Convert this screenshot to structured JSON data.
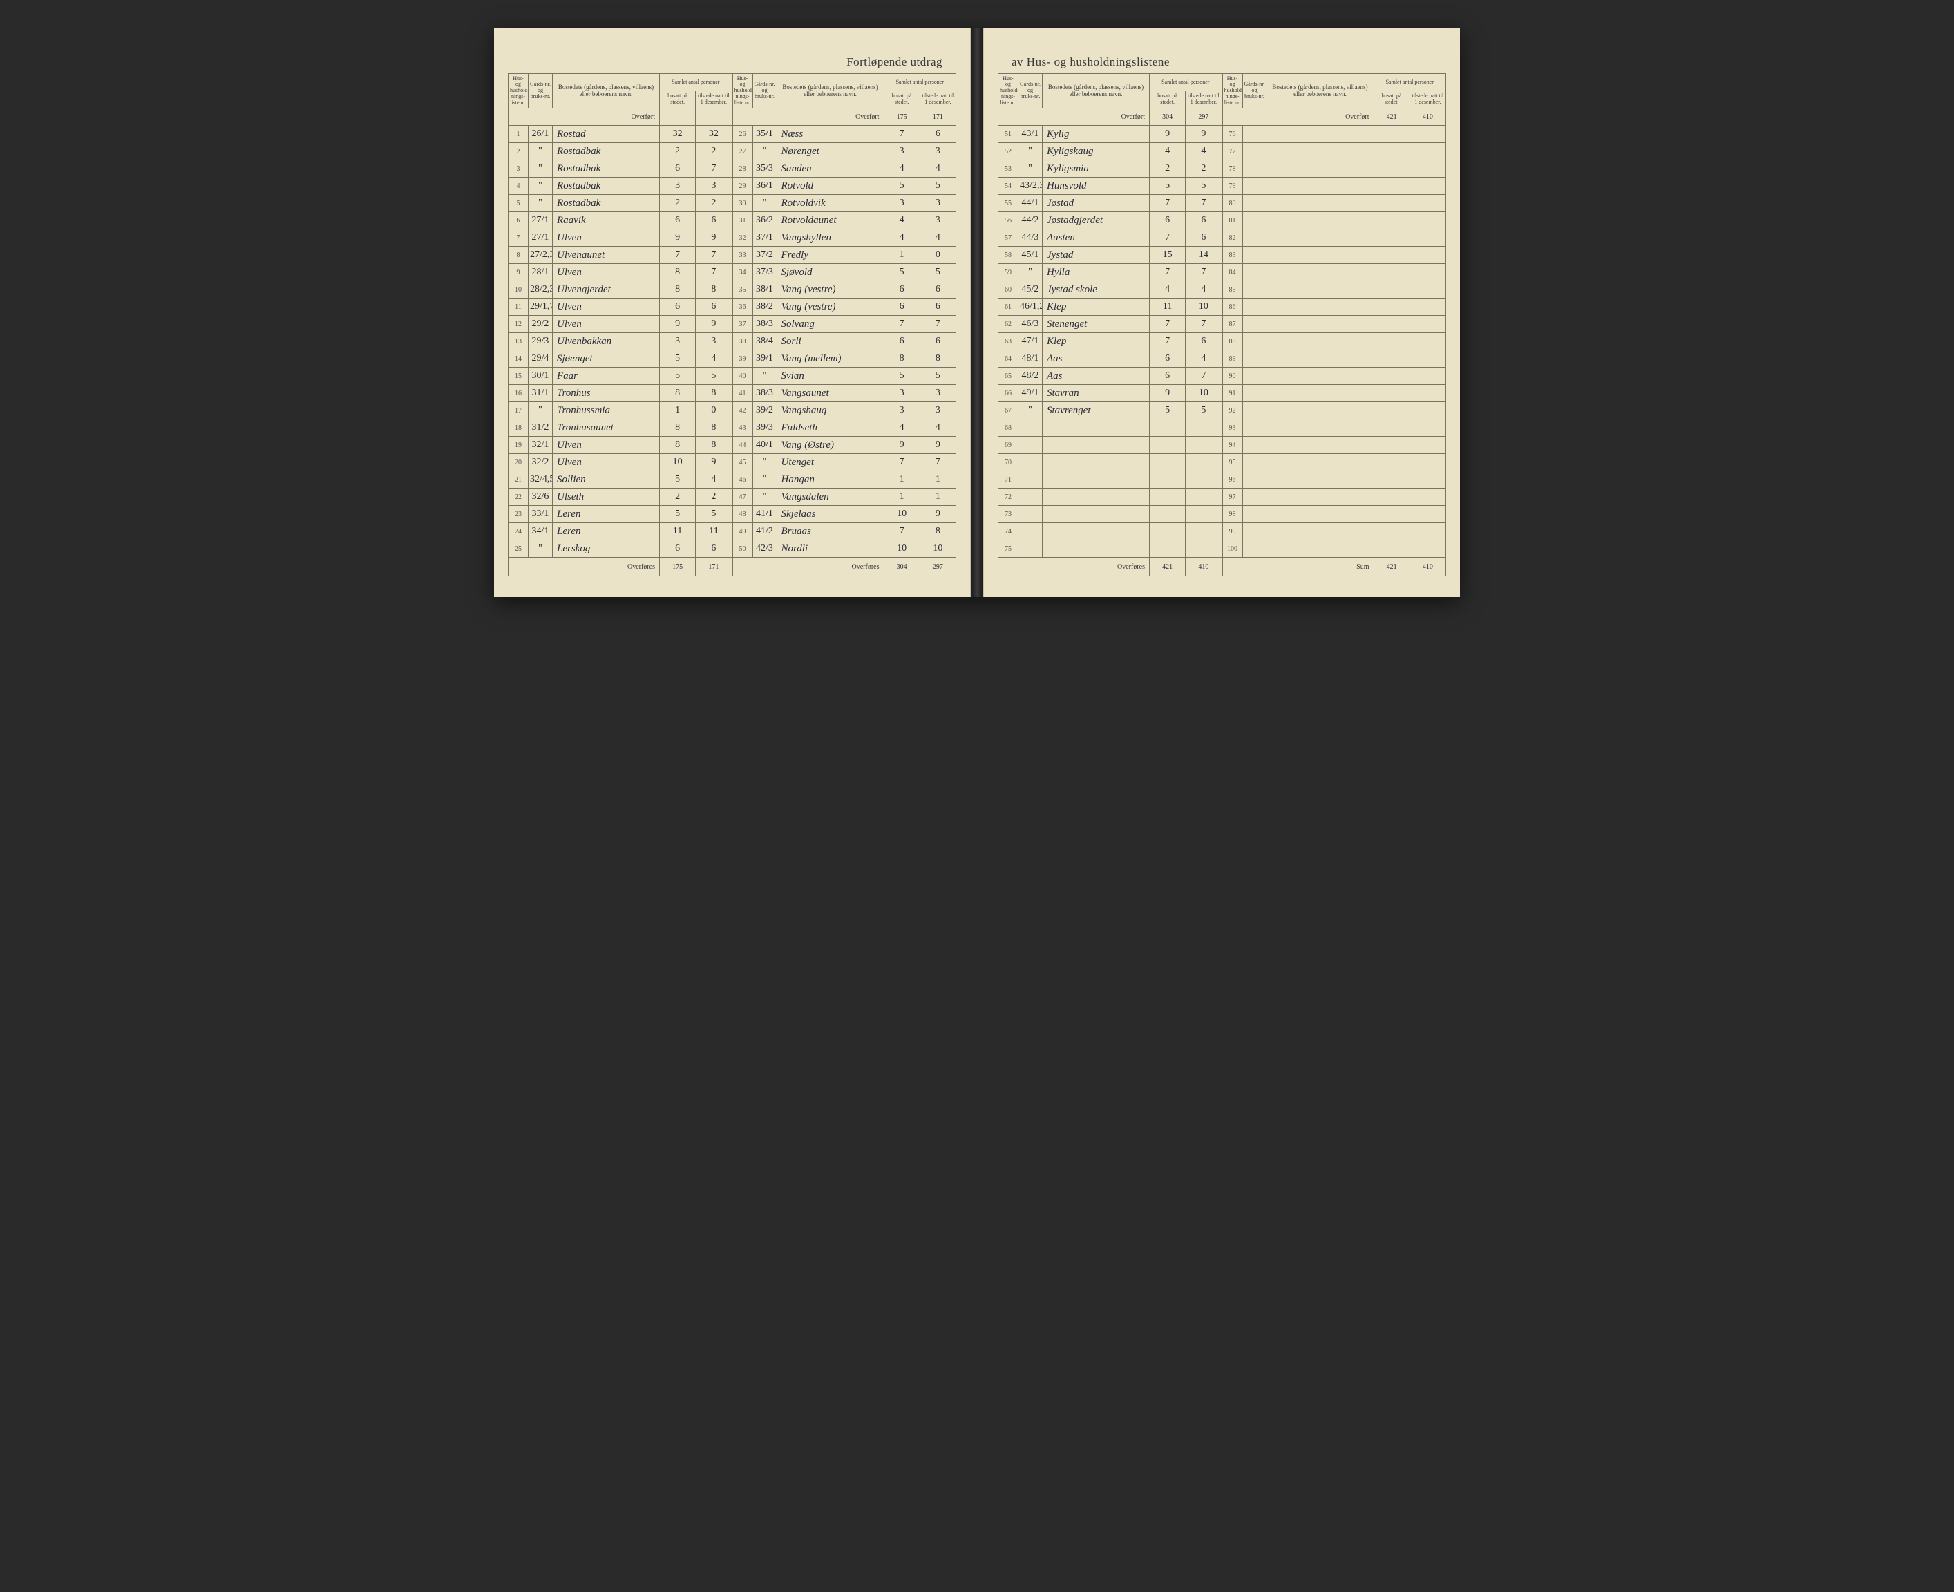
{
  "title_left": "Fortløpende utdrag",
  "title_right": "av Hus- og husholdningslistene",
  "headers": {
    "husnr": "Hus- og hushold-nings-liste nr.",
    "gardsnr": "Gårds-nr. og bruks-nr.",
    "bosted": "Bostedets (gårdens, plassens, villaens) eller beboerens navn.",
    "samlet": "Samlet antal personer",
    "bosatt": "bosatt på stedet.",
    "tilstede": "tilstede natt til 1 desember."
  },
  "overfort_label": "Overført",
  "overfores_label": "Overføres",
  "sum_label": "Sum",
  "blocks": [
    {
      "overfort": [
        "",
        ""
      ],
      "rows": [
        {
          "n": "1",
          "g": "26/1",
          "navn": "Rostad",
          "b": "32",
          "t": "32"
        },
        {
          "n": "2",
          "g": "\"",
          "navn": "Rostadbak",
          "b": "2",
          "t": "2"
        },
        {
          "n": "3",
          "g": "\"",
          "navn": "Rostadbak",
          "b": "6",
          "t": "7"
        },
        {
          "n": "4",
          "g": "\"",
          "navn": "Rostadbak",
          "b": "3",
          "t": "3"
        },
        {
          "n": "5",
          "g": "\"",
          "navn": "Rostadbak",
          "b": "2",
          "t": "2"
        },
        {
          "n": "6",
          "g": "27/1",
          "navn": "Raavik",
          "b": "6",
          "t": "6"
        },
        {
          "n": "7",
          "g": "27/1",
          "navn": "Ulven",
          "b": "9",
          "t": "9"
        },
        {
          "n": "8",
          "g": "27/2,3,4,5",
          "navn": "Ulvenaunet",
          "b": "7",
          "t": "7"
        },
        {
          "n": "9",
          "g": "28/1",
          "navn": "Ulven",
          "b": "8",
          "t": "7"
        },
        {
          "n": "10",
          "g": "28/2,3",
          "navn": "Ulvengjerdet",
          "b": "8",
          "t": "8"
        },
        {
          "n": "11",
          "g": "29/1,7",
          "navn": "Ulven",
          "b": "6",
          "t": "6"
        },
        {
          "n": "12",
          "g": "29/2",
          "navn": "Ulven",
          "b": "9",
          "t": "9"
        },
        {
          "n": "13",
          "g": "29/3",
          "navn": "Ulvenbakkan",
          "b": "3",
          "t": "3"
        },
        {
          "n": "14",
          "g": "29/4",
          "navn": "Sjøenget",
          "b": "5",
          "t": "4"
        },
        {
          "n": "15",
          "g": "30/1",
          "navn": "Faar",
          "b": "5",
          "t": "5"
        },
        {
          "n": "16",
          "g": "31/1",
          "navn": "Tronhus",
          "b": "8",
          "t": "8"
        },
        {
          "n": "17",
          "g": "\"",
          "navn": "Tronhussmia",
          "b": "1",
          "t": "0"
        },
        {
          "n": "18",
          "g": "31/2",
          "navn": "Tronhusaunet",
          "b": "8",
          "t": "8"
        },
        {
          "n": "19",
          "g": "32/1",
          "navn": "Ulven",
          "b": "8",
          "t": "8"
        },
        {
          "n": "20",
          "g": "32/2",
          "navn": "Ulven",
          "b": "10",
          "t": "9"
        },
        {
          "n": "21",
          "g": "32/4,5",
          "navn": "Sollien",
          "b": "5",
          "t": "4"
        },
        {
          "n": "22",
          "g": "32/6",
          "navn": "Ulseth",
          "b": "2",
          "t": "2"
        },
        {
          "n": "23",
          "g": "33/1",
          "navn": "Leren",
          "b": "5",
          "t": "5"
        },
        {
          "n": "24",
          "g": "34/1",
          "navn": "Leren",
          "b": "11",
          "t": "11"
        },
        {
          "n": "25",
          "g": "\"",
          "navn": "Lerskog",
          "b": "6",
          "t": "6"
        }
      ],
      "overfores": [
        "175",
        "171"
      ]
    },
    {
      "overfort": [
        "175",
        "171"
      ],
      "rows": [
        {
          "n": "26",
          "g": "35/1",
          "navn": "Næss",
          "b": "7",
          "t": "6"
        },
        {
          "n": "27",
          "g": "\"",
          "navn": "Nørenget",
          "b": "3",
          "t": "3"
        },
        {
          "n": "28",
          "g": "35/3",
          "navn": "Sanden",
          "b": "4",
          "t": "4"
        },
        {
          "n": "29",
          "g": "36/1",
          "navn": "Rotvold",
          "b": "5",
          "t": "5"
        },
        {
          "n": "30",
          "g": "\"",
          "navn": "Rotvoldvik",
          "b": "3",
          "t": "3"
        },
        {
          "n": "31",
          "g": "36/2",
          "navn": "Rotvoldaunet",
          "b": "4",
          "t": "3"
        },
        {
          "n": "32",
          "g": "37/1",
          "navn": "Vangshyllen",
          "b": "4",
          "t": "4"
        },
        {
          "n": "33",
          "g": "37/2",
          "navn": "Fredly",
          "b": "1",
          "t": "0"
        },
        {
          "n": "34",
          "g": "37/3",
          "navn": "Sjøvold",
          "b": "5",
          "t": "5"
        },
        {
          "n": "35",
          "g": "38/1",
          "navn": "Vang (vestre)",
          "b": "6",
          "t": "6"
        },
        {
          "n": "36",
          "g": "38/2",
          "navn": "Vang (vestre)",
          "b": "6",
          "t": "6"
        },
        {
          "n": "37",
          "g": "38/3",
          "navn": "Solvang",
          "b": "7",
          "t": "7"
        },
        {
          "n": "38",
          "g": "38/4",
          "navn": "Sorli",
          "b": "6",
          "t": "6"
        },
        {
          "n": "39",
          "g": "39/1",
          "navn": "Vang (mellem)",
          "b": "8",
          "t": "8"
        },
        {
          "n": "40",
          "g": "\"",
          "navn": "Svian",
          "b": "5",
          "t": "5"
        },
        {
          "n": "41",
          "g": "38/3",
          "navn": "Vangsaunet",
          "b": "3",
          "t": "3"
        },
        {
          "n": "42",
          "g": "39/2",
          "navn": "Vangshaug",
          "b": "3",
          "t": "3"
        },
        {
          "n": "43",
          "g": "39/3",
          "navn": "Fuldseth",
          "b": "4",
          "t": "4"
        },
        {
          "n": "44",
          "g": "40/1",
          "navn": "Vang (Østre)",
          "b": "9",
          "t": "9"
        },
        {
          "n": "45",
          "g": "\"",
          "navn": "Utenget",
          "b": "7",
          "t": "7"
        },
        {
          "n": "46",
          "g": "\"",
          "navn": "Hangan",
          "b": "1",
          "t": "1"
        },
        {
          "n": "47",
          "g": "\"",
          "navn": "Vangsdalen",
          "b": "1",
          "t": "1"
        },
        {
          "n": "48",
          "g": "41/1",
          "navn": "Skjelaas",
          "b": "10",
          "t": "9"
        },
        {
          "n": "49",
          "g": "41/2",
          "navn": "Bruaas",
          "b": "7",
          "t": "8"
        },
        {
          "n": "50",
          "g": "42/3",
          "navn": "Nordli",
          "b": "10",
          "t": "10"
        }
      ],
      "overfores": [
        "304",
        "297"
      ]
    },
    {
      "overfort": [
        "304",
        "297"
      ],
      "rows": [
        {
          "n": "51",
          "g": "43/1",
          "navn": "Kylig",
          "b": "9",
          "t": "9"
        },
        {
          "n": "52",
          "g": "\"",
          "navn": "Kyligskaug",
          "b": "4",
          "t": "4"
        },
        {
          "n": "53",
          "g": "\"",
          "navn": "Kyligsmia",
          "b": "2",
          "t": "2"
        },
        {
          "n": "54",
          "g": "43/2,3,3",
          "navn": "Hunsvold",
          "b": "5",
          "t": "5"
        },
        {
          "n": "55",
          "g": "44/1",
          "navn": "Jøstad",
          "b": "7",
          "t": "7"
        },
        {
          "n": "56",
          "g": "44/2",
          "navn": "Jøstadgjerdet",
          "b": "6",
          "t": "6"
        },
        {
          "n": "57",
          "g": "44/3",
          "navn": "Austen",
          "b": "7",
          "t": "6"
        },
        {
          "n": "58",
          "g": "45/1",
          "navn": "Jystad",
          "b": "15",
          "t": "14"
        },
        {
          "n": "59",
          "g": "\"",
          "navn": "Hylla",
          "b": "7",
          "t": "7"
        },
        {
          "n": "60",
          "g": "45/2",
          "navn": "Jystad skole",
          "b": "4",
          "t": "4"
        },
        {
          "n": "61",
          "g": "46/1,2",
          "navn": "Klep",
          "b": "11",
          "t": "10"
        },
        {
          "n": "62",
          "g": "46/3",
          "navn": "Stenenget",
          "b": "7",
          "t": "7"
        },
        {
          "n": "63",
          "g": "47/1",
          "navn": "Klep",
          "b": "7",
          "t": "6"
        },
        {
          "n": "64",
          "g": "48/1",
          "navn": "Aas",
          "b": "6",
          "t": "4"
        },
        {
          "n": "65",
          "g": "48/2",
          "navn": "Aas",
          "b": "6",
          "t": "7"
        },
        {
          "n": "66",
          "g": "49/1",
          "navn": "Stavran",
          "b": "9",
          "t": "10"
        },
        {
          "n": "67",
          "g": "\"",
          "navn": "Stavrenget",
          "b": "5",
          "t": "5"
        },
        {
          "n": "68",
          "g": "",
          "navn": "",
          "b": "",
          "t": ""
        },
        {
          "n": "69",
          "g": "",
          "navn": "",
          "b": "",
          "t": ""
        },
        {
          "n": "70",
          "g": "",
          "navn": "",
          "b": "",
          "t": ""
        },
        {
          "n": "71",
          "g": "",
          "navn": "",
          "b": "",
          "t": ""
        },
        {
          "n": "72",
          "g": "",
          "navn": "",
          "b": "",
          "t": ""
        },
        {
          "n": "73",
          "g": "",
          "navn": "",
          "b": "",
          "t": ""
        },
        {
          "n": "74",
          "g": "",
          "navn": "",
          "b": "",
          "t": ""
        },
        {
          "n": "75",
          "g": "",
          "navn": "",
          "b": "",
          "t": ""
        }
      ],
      "overfores": [
        "421",
        "410"
      ]
    },
    {
      "overfort": [
        "421",
        "410"
      ],
      "rows": [
        {
          "n": "76",
          "g": "",
          "navn": "",
          "b": "",
          "t": ""
        },
        {
          "n": "77",
          "g": "",
          "navn": "",
          "b": "",
          "t": ""
        },
        {
          "n": "78",
          "g": "",
          "navn": "",
          "b": "",
          "t": ""
        },
        {
          "n": "79",
          "g": "",
          "navn": "",
          "b": "",
          "t": ""
        },
        {
          "n": "80",
          "g": "",
          "navn": "",
          "b": "",
          "t": ""
        },
        {
          "n": "81",
          "g": "",
          "navn": "",
          "b": "",
          "t": ""
        },
        {
          "n": "82",
          "g": "",
          "navn": "",
          "b": "",
          "t": ""
        },
        {
          "n": "83",
          "g": "",
          "navn": "",
          "b": "",
          "t": ""
        },
        {
          "n": "84",
          "g": "",
          "navn": "",
          "b": "",
          "t": ""
        },
        {
          "n": "85",
          "g": "",
          "navn": "",
          "b": "",
          "t": ""
        },
        {
          "n": "86",
          "g": "",
          "navn": "",
          "b": "",
          "t": ""
        },
        {
          "n": "87",
          "g": "",
          "navn": "",
          "b": "",
          "t": ""
        },
        {
          "n": "88",
          "g": "",
          "navn": "",
          "b": "",
          "t": ""
        },
        {
          "n": "89",
          "g": "",
          "navn": "",
          "b": "",
          "t": ""
        },
        {
          "n": "90",
          "g": "",
          "navn": "",
          "b": "",
          "t": ""
        },
        {
          "n": "91",
          "g": "",
          "navn": "",
          "b": "",
          "t": ""
        },
        {
          "n": "92",
          "g": "",
          "navn": "",
          "b": "",
          "t": ""
        },
        {
          "n": "93",
          "g": "",
          "navn": "",
          "b": "",
          "t": ""
        },
        {
          "n": "94",
          "g": "",
          "navn": "",
          "b": "",
          "t": ""
        },
        {
          "n": "95",
          "g": "",
          "navn": "",
          "b": "",
          "t": ""
        },
        {
          "n": "96",
          "g": "",
          "navn": "",
          "b": "",
          "t": ""
        },
        {
          "n": "97",
          "g": "",
          "navn": "",
          "b": "",
          "t": ""
        },
        {
          "n": "98",
          "g": "",
          "navn": "",
          "b": "",
          "t": ""
        },
        {
          "n": "99",
          "g": "",
          "navn": "",
          "b": "",
          "t": ""
        },
        {
          "n": "100",
          "g": "",
          "navn": "",
          "b": "",
          "t": ""
        }
      ],
      "overfores": [
        "421",
        "410"
      ],
      "is_sum": true
    }
  ],
  "colors": {
    "paper": "#ebe3c8",
    "rule": "#7a7360",
    "ink_print": "#3a3a3a",
    "ink_hand": "#2b2e3a",
    "background": "#2a2a2a"
  }
}
